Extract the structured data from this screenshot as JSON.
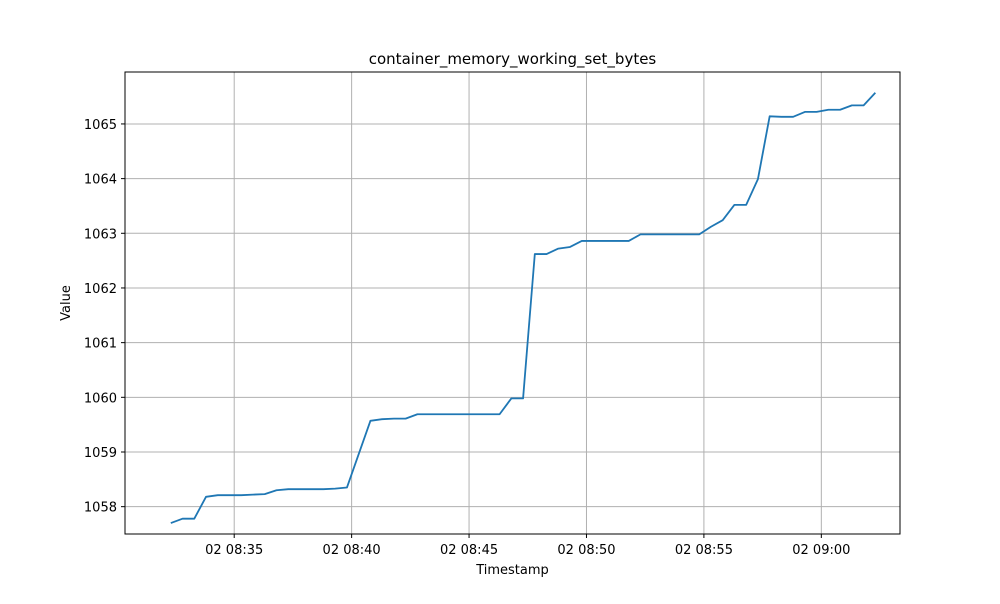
{
  "chart_data": {
    "type": "line",
    "title": "container_memory_working_set_bytes",
    "xlabel": "Timestamp",
    "ylabel": "Value",
    "x_ticks": [
      {
        "t": 35,
        "label": "02 08:35"
      },
      {
        "t": 40,
        "label": "02 08:40"
      },
      {
        "t": 45,
        "label": "02 08:45"
      },
      {
        "t": 50,
        "label": "02 08:50"
      },
      {
        "t": 55,
        "label": "02 08:55"
      },
      {
        "t": 60,
        "label": "02 09:00"
      }
    ],
    "y_ticks": [
      1058,
      1059,
      1060,
      1061,
      1062,
      1063,
      1064,
      1065
    ],
    "xlim": [
      30.35,
      63.35
    ],
    "ylim": [
      1057.5,
      1065.95
    ],
    "grid": true,
    "line_color": "#1f77b4",
    "series": [
      {
        "x": [
          32.3,
          32.8,
          33.3,
          33.8,
          34.3,
          34.8,
          35.3,
          35.8,
          36.3,
          36.8,
          37.3,
          37.8,
          38.3,
          38.8,
          39.3,
          39.8,
          40.3,
          40.8,
          41.3,
          41.8,
          42.3,
          42.8,
          43.3,
          43.8,
          44.3,
          44.8,
          45.3,
          45.8,
          46.3,
          46.8,
          47.3,
          47.8,
          48.3,
          48.8,
          49.3,
          49.8,
          50.3,
          50.8,
          51.3,
          51.8,
          52.3,
          52.8,
          53.3,
          53.8,
          54.3,
          54.8,
          55.3,
          55.8,
          56.3,
          56.8,
          57.3,
          57.8,
          58.3,
          58.8,
          59.3,
          59.8,
          60.3,
          60.8,
          61.3,
          61.8,
          62.3
        ],
        "values": [
          1057.7,
          1057.78,
          1057.78,
          1058.18,
          1058.21,
          1058.21,
          1058.21,
          1058.22,
          1058.23,
          1058.3,
          1058.32,
          1058.32,
          1058.32,
          1058.32,
          1058.33,
          1058.35,
          1058.96,
          1059.57,
          1059.6,
          1059.61,
          1059.61,
          1059.69,
          1059.69,
          1059.69,
          1059.69,
          1059.69,
          1059.69,
          1059.69,
          1059.69,
          1059.98,
          1059.98,
          1062.62,
          1062.62,
          1062.72,
          1062.75,
          1062.86,
          1062.86,
          1062.86,
          1062.86,
          1062.86,
          1062.98,
          1062.98,
          1062.98,
          1062.98,
          1062.98,
          1062.98,
          1063.12,
          1063.24,
          1063.52,
          1063.52,
          1063.99,
          1065.14,
          1065.13,
          1065.13,
          1065.22,
          1065.22,
          1065.26,
          1065.26,
          1065.34,
          1065.34,
          1065.57
        ]
      }
    ]
  }
}
